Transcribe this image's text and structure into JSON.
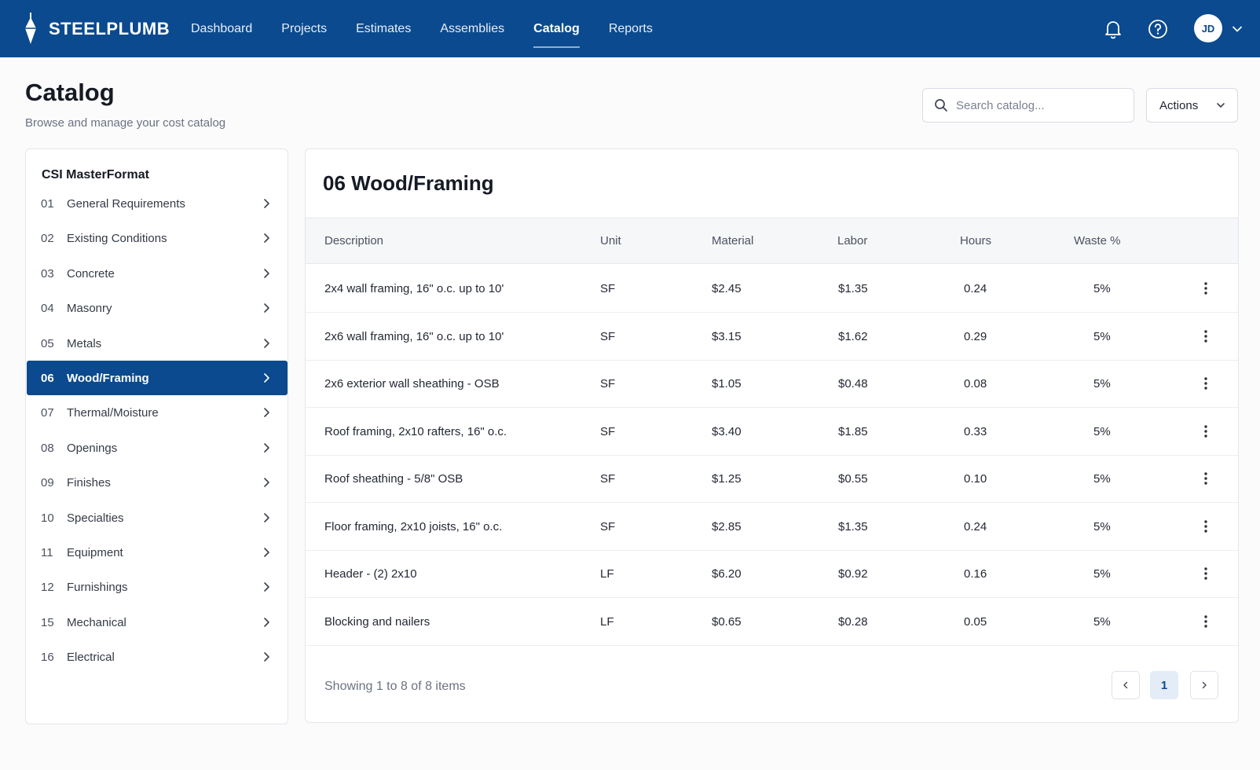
{
  "brand": {
    "name": "STEELPLUMB"
  },
  "nav": {
    "links": [
      "Dashboard",
      "Projects",
      "Estimates",
      "Assemblies",
      "Catalog",
      "Reports"
    ],
    "active": "Catalog",
    "user_initials": "JD"
  },
  "page": {
    "title": "Catalog",
    "subtitle": "Browse and manage your cost catalog"
  },
  "search": {
    "placeholder": "Search catalog...",
    "value": ""
  },
  "actions_label": "Actions",
  "sidebar": {
    "title": "CSI MasterFormat",
    "items": [
      {
        "num": "01",
        "label": "General Requirements"
      },
      {
        "num": "02",
        "label": "Existing Conditions"
      },
      {
        "num": "03",
        "label": "Concrete"
      },
      {
        "num": "04",
        "label": "Masonry"
      },
      {
        "num": "05",
        "label": "Metals"
      },
      {
        "num": "06",
        "label": "Wood/Framing"
      },
      {
        "num": "07",
        "label": "Thermal/Moisture"
      },
      {
        "num": "08",
        "label": "Openings"
      },
      {
        "num": "09",
        "label": "Finishes"
      },
      {
        "num": "10",
        "label": "Specialties"
      },
      {
        "num": "11",
        "label": "Equipment"
      },
      {
        "num": "12",
        "label": "Furnishings"
      },
      {
        "num": "15",
        "label": "Mechanical"
      },
      {
        "num": "16",
        "label": "Electrical"
      }
    ],
    "active_index": 5
  },
  "main": {
    "title": "06 Wood/Framing",
    "columns": {
      "description": "Description",
      "unit": "Unit",
      "material": "Material",
      "labor": "Labor",
      "hours": "Hours",
      "waste": "Waste %"
    },
    "rows": [
      {
        "description": "2x4 wall framing, 16\" o.c. up to 10'",
        "unit": "SF",
        "material": "$2.45",
        "labor": "$1.35",
        "hours": "0.24",
        "waste": "5%"
      },
      {
        "description": "2x6 wall framing, 16\" o.c. up to 10'",
        "unit": "SF",
        "material": "$3.15",
        "labor": "$1.62",
        "hours": "0.29",
        "waste": "5%"
      },
      {
        "description": "2x6 exterior wall sheathing - OSB",
        "unit": "SF",
        "material": "$1.05",
        "labor": "$0.48",
        "hours": "0.08",
        "waste": "5%"
      },
      {
        "description": "Roof framing, 2x10 rafters, 16\" o.c.",
        "unit": "SF",
        "material": "$3.40",
        "labor": "$1.85",
        "hours": "0.33",
        "waste": "5%"
      },
      {
        "description": "Roof sheathing - 5/8\" OSB",
        "unit": "SF",
        "material": "$1.25",
        "labor": "$0.55",
        "hours": "0.10",
        "waste": "5%"
      },
      {
        "description": "Floor framing, 2x10 joists, 16\" o.c.",
        "unit": "SF",
        "material": "$2.85",
        "labor": "$1.35",
        "hours": "0.24",
        "waste": "5%"
      },
      {
        "description": "Header - (2) 2x10",
        "unit": "LF",
        "material": "$6.20",
        "labor": "$0.92",
        "hours": "0.16",
        "waste": "5%"
      },
      {
        "description": "Blocking and nailers",
        "unit": "LF",
        "material": "$0.65",
        "labor": "$0.28",
        "hours": "0.05",
        "waste": "5%"
      }
    ],
    "footer": "Showing 1 to 8 of 8 items",
    "pagination": {
      "current_page": "1"
    }
  },
  "colors": {
    "brand_blue": "#0b4a8e",
    "page_bg": "#fbfbfc"
  }
}
